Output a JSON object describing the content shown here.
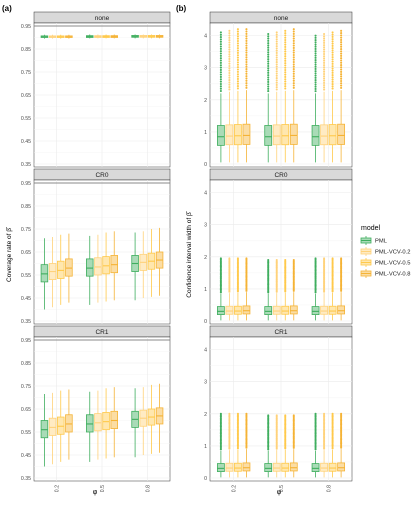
{
  "panels": {
    "a_label": "(a)",
    "b_label": "(b)"
  },
  "strips": [
    "none",
    "CR0",
    "CR1"
  ],
  "axis_text": {
    "x_label": "φ",
    "a_ylabel": "Coverage rate of β̂",
    "b_ylabel": "Confidence interval width of β̂"
  },
  "legend": {
    "title": "model",
    "entries": [
      "PML",
      "PML-VCV-0.2",
      "PML-VCV-0.5",
      "PML-VCV-0.8"
    ]
  },
  "colors": {
    "PML": "#3fae5e",
    "PML-VCV-0.2": "#ffd27a",
    "PML-VCV-0.5": "#ffc94a",
    "PML-VCV-0.8": "#f5b335",
    "strip_fill": "#d9d9d9",
    "grid": "#ebebeb",
    "reference_line": "#666666"
  },
  "chart_data": [
    {
      "type": "box",
      "panel": "a",
      "facet": "none",
      "x_categories": [
        "0.2",
        "0.5",
        "0.8"
      ],
      "ylim": [
        0.35,
        0.95
      ],
      "yticks": [
        "0.35",
        "0.45",
        "0.55",
        "0.65",
        "0.75",
        "0.85",
        "0.95"
      ],
      "reference_line": 0.95,
      "series": [
        {
          "name": "PML",
          "boxes": [
            {
              "lo": 0.895,
              "q1": 0.9,
              "med": 0.903,
              "q3": 0.907,
              "hi": 0.912
            },
            {
              "lo": 0.896,
              "q1": 0.9,
              "med": 0.904,
              "q3": 0.908,
              "hi": 0.913
            },
            {
              "lo": 0.896,
              "q1": 0.901,
              "med": 0.905,
              "q3": 0.909,
              "hi": 0.913
            }
          ]
        },
        {
          "name": "PML-VCV-0.2",
          "boxes": [
            {
              "lo": 0.895,
              "q1": 0.9,
              "med": 0.903,
              "q3": 0.907,
              "hi": 0.912
            },
            {
              "lo": 0.896,
              "q1": 0.9,
              "med": 0.904,
              "q3": 0.908,
              "hi": 0.913
            },
            {
              "lo": 0.896,
              "q1": 0.901,
              "med": 0.905,
              "q3": 0.909,
              "hi": 0.913
            }
          ]
        },
        {
          "name": "PML-VCV-0.5",
          "boxes": [
            {
              "lo": 0.895,
              "q1": 0.9,
              "med": 0.903,
              "q3": 0.907,
              "hi": 0.912
            },
            {
              "lo": 0.896,
              "q1": 0.9,
              "med": 0.904,
              "q3": 0.908,
              "hi": 0.913
            },
            {
              "lo": 0.896,
              "q1": 0.901,
              "med": 0.905,
              "q3": 0.909,
              "hi": 0.913
            }
          ]
        },
        {
          "name": "PML-VCV-0.8",
          "boxes": [
            {
              "lo": 0.895,
              "q1": 0.9,
              "med": 0.903,
              "q3": 0.907,
              "hi": 0.912
            },
            {
              "lo": 0.896,
              "q1": 0.9,
              "med": 0.904,
              "q3": 0.908,
              "hi": 0.913
            },
            {
              "lo": 0.896,
              "q1": 0.901,
              "med": 0.905,
              "q3": 0.909,
              "hi": 0.913
            }
          ]
        }
      ]
    },
    {
      "type": "box",
      "panel": "a",
      "facet": "CR0",
      "x_categories": [
        "0.2",
        "0.5",
        "0.8"
      ],
      "ylim": [
        0.35,
        0.95
      ],
      "yticks": [
        "0.35",
        "0.45",
        "0.55",
        "0.65",
        "0.75",
        "0.85",
        "0.95"
      ],
      "reference_line": 0.95,
      "series": [
        {
          "name": "PML",
          "boxes": [
            {
              "lo": 0.4,
              "q1": 0.52,
              "med": 0.555,
              "q3": 0.595,
              "hi": 0.71
            },
            {
              "lo": 0.42,
              "q1": 0.545,
              "med": 0.58,
              "q3": 0.62,
              "hi": 0.72
            },
            {
              "lo": 0.44,
              "q1": 0.565,
              "med": 0.6,
              "q3": 0.635,
              "hi": 0.735
            }
          ]
        },
        {
          "name": "PML-VCV-0.2",
          "boxes": [
            {
              "lo": 0.41,
              "q1": 0.53,
              "med": 0.565,
              "q3": 0.6,
              "hi": 0.715
            },
            {
              "lo": 0.43,
              "q1": 0.55,
              "med": 0.585,
              "q3": 0.625,
              "hi": 0.725
            },
            {
              "lo": 0.45,
              "q1": 0.57,
              "med": 0.605,
              "q3": 0.64,
              "hi": 0.74
            }
          ]
        },
        {
          "name": "PML-VCV-0.5",
          "boxes": [
            {
              "lo": 0.42,
              "q1": 0.535,
              "med": 0.57,
              "q3": 0.61,
              "hi": 0.725
            },
            {
              "lo": 0.435,
              "q1": 0.555,
              "med": 0.59,
              "q3": 0.63,
              "hi": 0.735
            },
            {
              "lo": 0.455,
              "q1": 0.575,
              "med": 0.61,
              "q3": 0.645,
              "hi": 0.75
            }
          ]
        },
        {
          "name": "PML-VCV-0.8",
          "boxes": [
            {
              "lo": 0.43,
              "q1": 0.545,
              "med": 0.58,
              "q3": 0.62,
              "hi": 0.73
            },
            {
              "lo": 0.44,
              "q1": 0.56,
              "med": 0.595,
              "q3": 0.635,
              "hi": 0.74
            },
            {
              "lo": 0.46,
              "q1": 0.58,
              "med": 0.615,
              "q3": 0.65,
              "hi": 0.755
            }
          ]
        }
      ]
    },
    {
      "type": "box",
      "panel": "a",
      "facet": "CR1",
      "x_categories": [
        "0.2",
        "0.5",
        "0.8"
      ],
      "ylim": [
        0.35,
        0.95
      ],
      "yticks": [
        "0.35",
        "0.45",
        "0.55",
        "0.65",
        "0.75",
        "0.85",
        "0.95"
      ],
      "reference_line": 0.95,
      "series": [
        {
          "name": "PML",
          "boxes": [
            {
              "lo": 0.4,
              "q1": 0.525,
              "med": 0.56,
              "q3": 0.6,
              "hi": 0.715
            },
            {
              "lo": 0.42,
              "q1": 0.55,
              "med": 0.585,
              "q3": 0.625,
              "hi": 0.725
            },
            {
              "lo": 0.44,
              "q1": 0.57,
              "med": 0.605,
              "q3": 0.64,
              "hi": 0.74
            }
          ]
        },
        {
          "name": "PML-VCV-0.2",
          "boxes": [
            {
              "lo": 0.41,
              "q1": 0.535,
              "med": 0.57,
              "q3": 0.61,
              "hi": 0.72
            },
            {
              "lo": 0.43,
              "q1": 0.555,
              "med": 0.59,
              "q3": 0.63,
              "hi": 0.73
            },
            {
              "lo": 0.45,
              "q1": 0.575,
              "med": 0.61,
              "q3": 0.645,
              "hi": 0.745
            }
          ]
        },
        {
          "name": "PML-VCV-0.5",
          "boxes": [
            {
              "lo": 0.42,
              "q1": 0.54,
              "med": 0.575,
              "q3": 0.615,
              "hi": 0.73
            },
            {
              "lo": 0.435,
              "q1": 0.56,
              "med": 0.595,
              "q3": 0.635,
              "hi": 0.74
            },
            {
              "lo": 0.455,
              "q1": 0.58,
              "med": 0.615,
              "q3": 0.65,
              "hi": 0.755
            }
          ]
        },
        {
          "name": "PML-VCV-0.8",
          "boxes": [
            {
              "lo": 0.43,
              "q1": 0.55,
              "med": 0.585,
              "q3": 0.625,
              "hi": 0.735
            },
            {
              "lo": 0.44,
              "q1": 0.565,
              "med": 0.6,
              "q3": 0.64,
              "hi": 0.745
            },
            {
              "lo": 0.46,
              "q1": 0.585,
              "med": 0.62,
              "q3": 0.655,
              "hi": 0.76
            }
          ]
        }
      ]
    },
    {
      "type": "box",
      "panel": "b",
      "facet": "none",
      "x_categories": [
        "0.2",
        "0.5",
        "0.8"
      ],
      "ylim": [
        0,
        4.3
      ],
      "yticks": [
        "0",
        "1",
        "2",
        "3",
        "4"
      ],
      "series": [
        {
          "name": "PML",
          "boxes": [
            {
              "lo": 0.05,
              "q1": 0.58,
              "med": 0.85,
              "q3": 1.2,
              "hi": 2.2,
              "out_max": 4.1
            },
            {
              "lo": 0.05,
              "q1": 0.58,
              "med": 0.85,
              "q3": 1.2,
              "hi": 2.2,
              "out_max": 4.05
            },
            {
              "lo": 0.05,
              "q1": 0.58,
              "med": 0.85,
              "q3": 1.2,
              "hi": 2.2,
              "out_max": 4.0
            }
          ]
        },
        {
          "name": "PML-VCV-0.2",
          "boxes": [
            {
              "lo": 0.05,
              "q1": 0.6,
              "med": 0.87,
              "q3": 1.22,
              "hi": 2.25,
              "out_max": 4.15
            },
            {
              "lo": 0.05,
              "q1": 0.6,
              "med": 0.87,
              "q3": 1.22,
              "hi": 2.25,
              "out_max": 4.1
            },
            {
              "lo": 0.05,
              "q1": 0.6,
              "med": 0.87,
              "q3": 1.22,
              "hi": 2.25,
              "out_max": 4.05
            }
          ]
        },
        {
          "name": "PML-VCV-0.5",
          "boxes": [
            {
              "lo": 0.05,
              "q1": 0.6,
              "med": 0.88,
              "q3": 1.23,
              "hi": 2.28,
              "out_max": 4.2
            },
            {
              "lo": 0.05,
              "q1": 0.6,
              "med": 0.88,
              "q3": 1.23,
              "hi": 2.28,
              "out_max": 4.15
            },
            {
              "lo": 0.05,
              "q1": 0.6,
              "med": 0.88,
              "q3": 1.23,
              "hi": 2.28,
              "out_max": 4.1
            }
          ]
        },
        {
          "name": "PML-VCV-0.8",
          "boxes": [
            {
              "lo": 0.05,
              "q1": 0.61,
              "med": 0.89,
              "q3": 1.24,
              "hi": 2.3,
              "out_max": 4.2
            },
            {
              "lo": 0.05,
              "q1": 0.61,
              "med": 0.89,
              "q3": 1.24,
              "hi": 2.3,
              "out_max": 4.2
            },
            {
              "lo": 0.05,
              "q1": 0.61,
              "med": 0.89,
              "q3": 1.24,
              "hi": 2.3,
              "out_max": 4.15
            }
          ]
        }
      ]
    },
    {
      "type": "box",
      "panel": "b",
      "facet": "CR0",
      "x_categories": [
        "0.2",
        "0.5",
        "0.8"
      ],
      "ylim": [
        0,
        4.3
      ],
      "yticks": [
        "0",
        "1",
        "2",
        "3",
        "4"
      ],
      "series": [
        {
          "name": "PML",
          "boxes": [
            {
              "lo": 0.02,
              "q1": 0.2,
              "med": 0.3,
              "q3": 0.45,
              "hi": 0.85,
              "out_max": 1.95
            },
            {
              "lo": 0.02,
              "q1": 0.2,
              "med": 0.3,
              "q3": 0.45,
              "hi": 0.85,
              "out_max": 1.9
            },
            {
              "lo": 0.02,
              "q1": 0.2,
              "med": 0.3,
              "q3": 0.45,
              "hi": 0.85,
              "out_max": 1.95
            }
          ]
        },
        {
          "name": "PML-VCV-0.2",
          "boxes": [
            {
              "lo": 0.02,
              "q1": 0.21,
              "med": 0.31,
              "q3": 0.46,
              "hi": 0.87,
              "out_max": 1.95
            },
            {
              "lo": 0.02,
              "q1": 0.21,
              "med": 0.31,
              "q3": 0.46,
              "hi": 0.87,
              "out_max": 1.9
            },
            {
              "lo": 0.02,
              "q1": 0.21,
              "med": 0.31,
              "q3": 0.46,
              "hi": 0.87,
              "out_max": 1.95
            }
          ]
        },
        {
          "name": "PML-VCV-0.5",
          "boxes": [
            {
              "lo": 0.02,
              "q1": 0.21,
              "med": 0.31,
              "q3": 0.46,
              "hi": 0.88,
              "out_max": 1.95
            },
            {
              "lo": 0.02,
              "q1": 0.21,
              "med": 0.31,
              "q3": 0.46,
              "hi": 0.88,
              "out_max": 1.9
            },
            {
              "lo": 0.02,
              "q1": 0.21,
              "med": 0.31,
              "q3": 0.46,
              "hi": 0.88,
              "out_max": 1.95
            }
          ]
        },
        {
          "name": "PML-VCV-0.8",
          "boxes": [
            {
              "lo": 0.02,
              "q1": 0.22,
              "med": 0.32,
              "q3": 0.47,
              "hi": 0.9,
              "out_max": 1.95
            },
            {
              "lo": 0.02,
              "q1": 0.22,
              "med": 0.32,
              "q3": 0.47,
              "hi": 0.9,
              "out_max": 1.9
            },
            {
              "lo": 0.02,
              "q1": 0.22,
              "med": 0.32,
              "q3": 0.47,
              "hi": 0.9,
              "out_max": 1.95
            }
          ]
        }
      ]
    },
    {
      "type": "box",
      "panel": "b",
      "facet": "CR1",
      "x_categories": [
        "0.2",
        "0.5",
        "0.8"
      ],
      "ylim": [
        0,
        4.3
      ],
      "yticks": [
        "0",
        "1",
        "2",
        "3",
        "4"
      ],
      "series": [
        {
          "name": "PML",
          "boxes": [
            {
              "lo": 0.02,
              "q1": 0.2,
              "med": 0.3,
              "q3": 0.45,
              "hi": 0.85,
              "out_max": 2.0
            },
            {
              "lo": 0.02,
              "q1": 0.2,
              "med": 0.3,
              "q3": 0.45,
              "hi": 0.85,
              "out_max": 1.95
            },
            {
              "lo": 0.02,
              "q1": 0.2,
              "med": 0.3,
              "q3": 0.45,
              "hi": 0.85,
              "out_max": 2.0
            }
          ]
        },
        {
          "name": "PML-VCV-0.2",
          "boxes": [
            {
              "lo": 0.02,
              "q1": 0.21,
              "med": 0.31,
              "q3": 0.46,
              "hi": 0.87,
              "out_max": 2.0
            },
            {
              "lo": 0.02,
              "q1": 0.21,
              "med": 0.31,
              "q3": 0.46,
              "hi": 0.87,
              "out_max": 1.95
            },
            {
              "lo": 0.02,
              "q1": 0.21,
              "med": 0.31,
              "q3": 0.46,
              "hi": 0.87,
              "out_max": 2.0
            }
          ]
        },
        {
          "name": "PML-VCV-0.5",
          "boxes": [
            {
              "lo": 0.02,
              "q1": 0.21,
              "med": 0.31,
              "q3": 0.46,
              "hi": 0.88,
              "out_max": 2.0
            },
            {
              "lo": 0.02,
              "q1": 0.21,
              "med": 0.31,
              "q3": 0.46,
              "hi": 0.88,
              "out_max": 1.95
            },
            {
              "lo": 0.02,
              "q1": 0.21,
              "med": 0.31,
              "q3": 0.46,
              "hi": 0.88,
              "out_max": 2.0
            }
          ]
        },
        {
          "name": "PML-VCV-0.8",
          "boxes": [
            {
              "lo": 0.02,
              "q1": 0.22,
              "med": 0.32,
              "q3": 0.47,
              "hi": 0.9,
              "out_max": 2.0
            },
            {
              "lo": 0.02,
              "q1": 0.22,
              "med": 0.32,
              "q3": 0.47,
              "hi": 0.9,
              "out_max": 1.95
            },
            {
              "lo": 0.02,
              "q1": 0.22,
              "med": 0.32,
              "q3": 0.47,
              "hi": 0.9,
              "out_max": 2.0
            }
          ]
        }
      ]
    }
  ]
}
